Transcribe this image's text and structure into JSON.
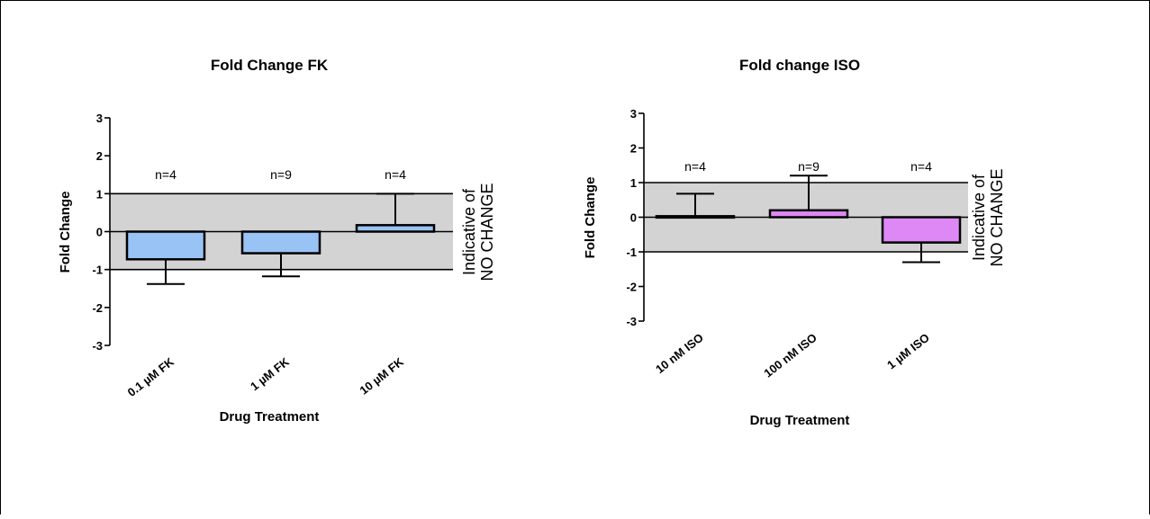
{
  "chart_data": [
    {
      "type": "bar",
      "title": "Fold Change  FK",
      "xlabel": "Drug Treatment",
      "ylabel": "Fold  Change",
      "ylim": [
        -3,
        3
      ],
      "yticks": [
        "3",
        "2",
        "1",
        "0",
        "-1",
        "-2",
        "-3"
      ],
      "categories": [
        "0.1 µM FK",
        "1 µM FK",
        "10 µM FK"
      ],
      "values": [
        -0.73,
        -0.57,
        0.17
      ],
      "error_tips": [
        -1.38,
        -1.18,
        1.0
      ],
      "n_labels": [
        "n=4",
        "n=9",
        "n=4"
      ],
      "bar_color": "#99c2f5",
      "band": [
        -1,
        1
      ],
      "band_label": [
        "Indicative of",
        "NO CHANGE"
      ]
    },
    {
      "type": "bar",
      "title": "Fold change ISO",
      "xlabel": "Drug Treatment",
      "ylabel": "Fold Change",
      "ylim": [
        -3,
        3
      ],
      "yticks": [
        "3",
        "2",
        "1",
        "0",
        "-1",
        "-2",
        "-3"
      ],
      "categories": [
        "10 nM ISO",
        "100 nM ISO",
        "1 µM ISO"
      ],
      "values": [
        0.03,
        0.2,
        -0.73
      ],
      "error_tips": [
        0.68,
        1.2,
        -1.3
      ],
      "n_labels": [
        "n=4",
        "n=9",
        "n=4"
      ],
      "bar_color": "#dd88f5",
      "band": [
        -1,
        1
      ],
      "band_label": [
        "Indicative of",
        "NO CHANGE"
      ]
    }
  ]
}
